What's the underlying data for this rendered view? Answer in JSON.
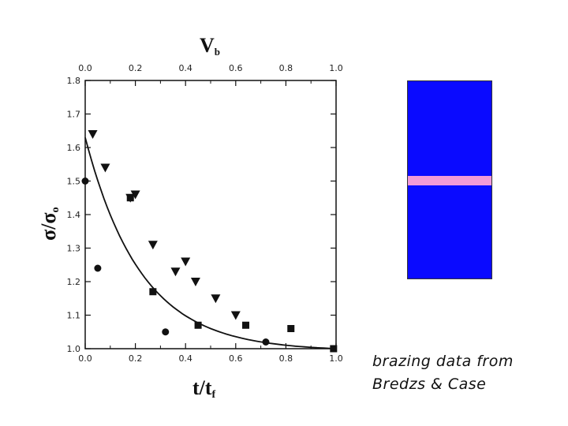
{
  "chart_data": {
    "type": "scatter",
    "xlabel": "t/t",
    "xlabel_sub": "f",
    "ylabel": "σ/σ",
    "ylabel_sub": "o",
    "top_axis_label": "V",
    "top_axis_label_sub": "b",
    "xlim": [
      0.0,
      1.0
    ],
    "ylim": [
      1.0,
      1.8
    ],
    "x_ticks": [
      "0.0",
      "0.2",
      "0.4",
      "0.6",
      "0.8",
      "1.0"
    ],
    "y_ticks": [
      "1.0",
      "1.1",
      "1.2",
      "1.3",
      "1.4",
      "1.5",
      "1.6",
      "1.7",
      "1.8"
    ],
    "top_ticks": [
      "0.0",
      "0.2",
      "0.4",
      "0.6",
      "0.8",
      "1.0"
    ],
    "series": [
      {
        "marker": "triangle-down",
        "x": [
          0.03,
          0.08,
          0.18,
          0.2,
          0.27,
          0.36,
          0.4,
          0.44,
          0.52,
          0.6
        ],
        "y": [
          1.64,
          1.54,
          1.45,
          1.46,
          1.31,
          1.23,
          1.26,
          1.2,
          1.15,
          1.1
        ]
      },
      {
        "marker": "square",
        "x": [
          0.18,
          0.27,
          0.45,
          0.64,
          0.82,
          0.99
        ],
        "y": [
          1.45,
          1.17,
          1.07,
          1.07,
          1.06,
          1.0
        ]
      },
      {
        "marker": "circle",
        "x": [
          0.0,
          0.05,
          0.32,
          0.72
        ],
        "y": [
          1.5,
          1.24,
          1.05,
          1.02
        ]
      }
    ],
    "fit_curve": {
      "x0": 0.0,
      "y0": 1.63,
      "x1": 1.0,
      "y1": 1.0,
      "curvature": 4.5
    }
  },
  "caption": {
    "line1": "brazing data from",
    "line2": "Bredzs & Case"
  },
  "colors": {
    "bar_fill": "#0a0aff",
    "stripe_fill": "#f29ad8"
  }
}
